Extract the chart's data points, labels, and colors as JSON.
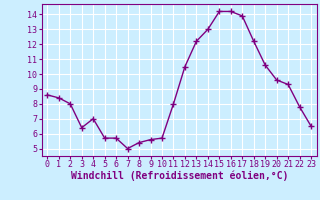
{
  "x": [
    0,
    1,
    2,
    3,
    4,
    5,
    6,
    7,
    8,
    9,
    10,
    11,
    12,
    13,
    14,
    15,
    16,
    17,
    18,
    19,
    20,
    21,
    22,
    23
  ],
  "y": [
    8.6,
    8.4,
    8.0,
    6.4,
    7.0,
    5.7,
    5.7,
    5.0,
    5.4,
    5.6,
    5.7,
    8.0,
    10.5,
    12.2,
    13.0,
    14.2,
    14.2,
    13.9,
    12.2,
    10.6,
    9.6,
    9.3,
    7.8,
    6.5
  ],
  "line_color": "#800080",
  "marker": "+",
  "marker_size": 4,
  "marker_lw": 1.0,
  "line_width": 1.0,
  "bg_color": "#cceeff",
  "grid_color": "#ffffff",
  "xlabel": "Windchill (Refroidissement éolien,°C)",
  "xlabel_color": "#800080",
  "tick_color": "#800080",
  "label_color": "#800080",
  "ylim": [
    4.5,
    14.7
  ],
  "xlim": [
    -0.5,
    23.5
  ],
  "yticks": [
    5,
    6,
    7,
    8,
    9,
    10,
    11,
    12,
    13,
    14
  ],
  "xticks": [
    0,
    1,
    2,
    3,
    4,
    5,
    6,
    7,
    8,
    9,
    10,
    11,
    12,
    13,
    14,
    15,
    16,
    17,
    18,
    19,
    20,
    21,
    22,
    23
  ],
  "tick_fontsize": 6,
  "xlabel_fontsize": 7
}
